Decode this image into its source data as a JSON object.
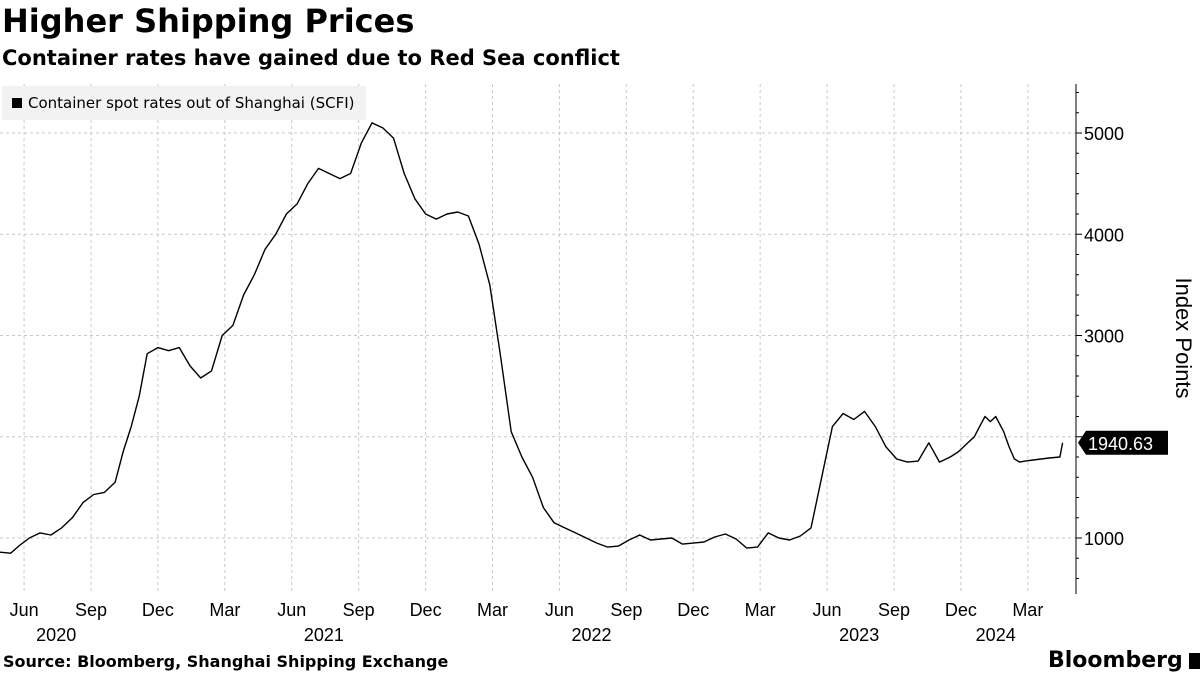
{
  "title": "Higher Shipping Prices",
  "subtitle": "Container rates have gained due to Red Sea conflict",
  "source": "Source: Bloomberg, Shanghai Shipping Exchange",
  "brand": "Bloomberg",
  "chart_data": {
    "type": "line",
    "title": "Higher Shipping Prices",
    "subtitle": "Container rates have gained due to Red Sea conflict",
    "ylabel": "Index Points",
    "xlabel": "",
    "ylim": [
      500,
      5500
    ],
    "xlim": [
      2020.33,
      2024.35
    ],
    "yticks": [
      1000,
      2000,
      3000,
      4000,
      5000
    ],
    "ytick_labels": [
      "1000",
      "2000",
      "3000",
      "4000",
      "5000"
    ],
    "month_ticks": [
      {
        "t": 2020.42,
        "label": "Jun"
      },
      {
        "t": 2020.67,
        "label": "Sep"
      },
      {
        "t": 2020.92,
        "label": "Dec"
      },
      {
        "t": 2021.17,
        "label": "Mar"
      },
      {
        "t": 2021.42,
        "label": "Jun"
      },
      {
        "t": 2021.67,
        "label": "Sep"
      },
      {
        "t": 2021.92,
        "label": "Dec"
      },
      {
        "t": 2022.17,
        "label": "Mar"
      },
      {
        "t": 2022.42,
        "label": "Jun"
      },
      {
        "t": 2022.67,
        "label": "Sep"
      },
      {
        "t": 2022.92,
        "label": "Dec"
      },
      {
        "t": 2023.17,
        "label": "Mar"
      },
      {
        "t": 2023.42,
        "label": "Jun"
      },
      {
        "t": 2023.67,
        "label": "Sep"
      },
      {
        "t": 2023.92,
        "label": "Dec"
      },
      {
        "t": 2024.17,
        "label": "Mar"
      }
    ],
    "year_labels": [
      {
        "t": 2020.54,
        "label": "2020"
      },
      {
        "t": 2021.54,
        "label": "2021"
      },
      {
        "t": 2022.54,
        "label": "2022"
      },
      {
        "t": 2023.54,
        "label": "2023"
      },
      {
        "t": 2024.05,
        "label": "2024"
      }
    ],
    "last_value_label": "1940.63",
    "series": [
      {
        "name": "Container spot rates out of Shanghai (SCFI)",
        "x": [
          2020.33,
          2020.37,
          2020.4,
          2020.44,
          2020.48,
          2020.52,
          2020.56,
          2020.6,
          2020.64,
          2020.68,
          2020.72,
          2020.76,
          2020.79,
          2020.82,
          2020.85,
          2020.88,
          2020.92,
          2020.96,
          2021.0,
          2021.04,
          2021.08,
          2021.12,
          2021.16,
          2021.2,
          2021.24,
          2021.28,
          2021.32,
          2021.36,
          2021.4,
          2021.44,
          2021.48,
          2021.52,
          2021.56,
          2021.6,
          2021.64,
          2021.68,
          2021.72,
          2021.76,
          2021.8,
          2021.84,
          2021.88,
          2021.92,
          2021.96,
          2022.0,
          2022.04,
          2022.08,
          2022.12,
          2022.16,
          2022.2,
          2022.24,
          2022.28,
          2022.32,
          2022.36,
          2022.4,
          2022.44,
          2022.48,
          2022.52,
          2022.56,
          2022.6,
          2022.64,
          2022.68,
          2022.72,
          2022.76,
          2022.8,
          2022.84,
          2022.88,
          2022.92,
          2022.96,
          2023.0,
          2023.04,
          2023.08,
          2023.12,
          2023.16,
          2023.2,
          2023.24,
          2023.28,
          2023.32,
          2023.36,
          2023.4,
          2023.44,
          2023.48,
          2023.52,
          2023.56,
          2023.6,
          2023.64,
          2023.68,
          2023.72,
          2023.76,
          2023.8,
          2023.84,
          2023.88,
          2023.91,
          2023.93,
          2023.95,
          2023.97,
          2023.99,
          2024.01,
          2024.03,
          2024.05,
          2024.08,
          2024.1,
          2024.12,
          2024.14,
          2024.16,
          2024.19,
          2024.22,
          2024.25,
          2024.29,
          2024.3
        ],
        "values": [
          860,
          850,
          920,
          1000,
          1050,
          1030,
          1100,
          1200,
          1350,
          1430,
          1450,
          1550,
          1850,
          2100,
          2400,
          2820,
          2880,
          2850,
          2880,
          2700,
          2580,
          2650,
          3000,
          3100,
          3400,
          3600,
          3850,
          4000,
          4200,
          4300,
          4500,
          4650,
          4600,
          4550,
          4600,
          4900,
          5100,
          5050,
          4950,
          4600,
          4350,
          4200,
          4150,
          4200,
          4220,
          4180,
          3900,
          3500,
          2800,
          2050,
          1800,
          1600,
          1300,
          1150,
          1100,
          1050,
          1000,
          950,
          910,
          920,
          980,
          1030,
          980,
          990,
          1000,
          940,
          950,
          960,
          1010,
          1040,
          990,
          900,
          910,
          1050,
          1000,
          980,
          1020,
          1100,
          1600,
          2100,
          2230,
          2170,
          2250,
          2100,
          1900,
          1780,
          1750,
          1760,
          1940,
          1750,
          1800,
          1850,
          1900,
          1950,
          2000,
          2100,
          2200,
          2150,
          2200,
          2050,
          1900,
          1780,
          1750,
          1760,
          1770,
          1780,
          1790,
          1800,
          1940.63
        ]
      }
    ]
  },
  "colors": {
    "line": "#000000",
    "grid": "#c8c8c8",
    "legend_bg": "#f2f2f2",
    "label_bg": "#000000"
  }
}
